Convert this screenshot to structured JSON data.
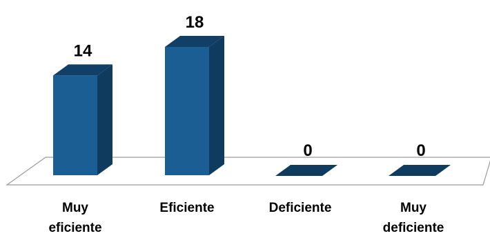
{
  "chart_data": {
    "type": "bar",
    "title": "",
    "xlabel": "",
    "ylabel": "",
    "categories": [
      "Muy\neficiente",
      "Eficiente",
      "Deficiente",
      "Muy\ndeficiente"
    ],
    "values": [
      14,
      18,
      0,
      0
    ],
    "ylim": [
      0,
      18
    ],
    "grid": false,
    "legend": "none",
    "data_labels": true
  },
  "colors": {
    "bar_front": "#1b5e94",
    "bar_side": "#0f3b5e",
    "bar_top": "#123f66",
    "floor": "#ffffff",
    "floor_stroke": "#9a9a9a"
  }
}
